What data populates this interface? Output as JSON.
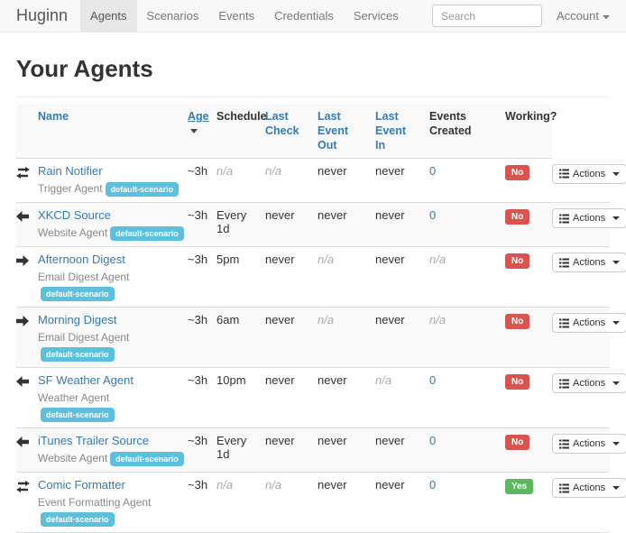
{
  "navbar": {
    "brand": "Huginn",
    "items": [
      {
        "label": "Agents",
        "active": true
      },
      {
        "label": "Scenarios",
        "active": false
      },
      {
        "label": "Events",
        "active": false
      },
      {
        "label": "Credentials",
        "active": false
      },
      {
        "label": "Services",
        "active": false
      }
    ],
    "search": {
      "placeholder": "Search"
    },
    "account_label": "Account"
  },
  "page": {
    "title": "Your Agents"
  },
  "colors": {
    "link": "#337ab7",
    "scenario_badge": "#5bc0de",
    "working_no": "#d9534f",
    "working_yes": "#5cb85c",
    "active_nav_bg": "#e7e7e7"
  },
  "table": {
    "columns": [
      {
        "key": "name",
        "label": "Name",
        "link": true,
        "sorted": false
      },
      {
        "key": "age",
        "label": "Age",
        "link": true,
        "sorted": true
      },
      {
        "key": "schedule",
        "label": "Schedule",
        "link": false,
        "sorted": false
      },
      {
        "key": "last_check",
        "label": "Last\nCheck",
        "link": true,
        "sorted": false
      },
      {
        "key": "last_event_out",
        "label": "Last Event\nOut",
        "link": true,
        "sorted": false
      },
      {
        "key": "last_event_in",
        "label": "Last Event\nIn",
        "link": true,
        "sorted": false
      },
      {
        "key": "events_created",
        "label": "Events\nCreated",
        "link": false,
        "sorted": false
      },
      {
        "key": "working",
        "label": "Working?",
        "link": false,
        "sorted": false
      }
    ],
    "actions_label": "Actions",
    "rows": [
      {
        "icon": "transfer",
        "name": "Rain Notifier",
        "type": "Trigger Agent",
        "scenario": "default-scenario",
        "age": "~3h",
        "schedule": "n/a",
        "last_check": "n/a",
        "last_event_out": "never",
        "last_event_in": "never",
        "events_created": "0",
        "working": "No"
      },
      {
        "icon": "arrow-left",
        "name": "XKCD Source",
        "type": "Website Agent",
        "scenario": "default-scenario",
        "age": "~3h",
        "schedule": "Every 1d",
        "last_check": "never",
        "last_event_out": "never",
        "last_event_in": "never",
        "events_created": "0",
        "working": "No"
      },
      {
        "icon": "arrow-right",
        "name": "Afternoon Digest",
        "type": "Email Digest Agent",
        "scenario": "default-scenario",
        "age": "~3h",
        "schedule": "5pm",
        "last_check": "never",
        "last_event_out": "n/a",
        "last_event_in": "never",
        "events_created": "n/a",
        "working": "No"
      },
      {
        "icon": "arrow-right",
        "name": "Morning Digest",
        "type": "Email Digest Agent",
        "scenario": "default-scenario",
        "age": "~3h",
        "schedule": "6am",
        "last_check": "never",
        "last_event_out": "n/a",
        "last_event_in": "never",
        "events_created": "n/a",
        "working": "No"
      },
      {
        "icon": "arrow-left",
        "name": "SF Weather Agent",
        "type": "Weather Agent",
        "scenario": "default-scenario",
        "age": "~3h",
        "schedule": "10pm",
        "last_check": "never",
        "last_event_out": "never",
        "last_event_in": "n/a",
        "events_created": "0",
        "working": "No"
      },
      {
        "icon": "arrow-left",
        "name": "iTunes Trailer Source",
        "type": "Website Agent",
        "scenario": "default-scenario",
        "age": "~3h",
        "schedule": "Every 1d",
        "last_check": "never",
        "last_event_out": "never",
        "last_event_in": "never",
        "events_created": "0",
        "working": "No"
      },
      {
        "icon": "transfer",
        "name": "Comic Formatter",
        "type": "Event Formatting Agent",
        "scenario": "default-scenario",
        "age": "~3h",
        "schedule": "n/a",
        "last_check": "n/a",
        "last_event_out": "never",
        "last_event_in": "never",
        "events_created": "0",
        "working": "Yes"
      }
    ]
  }
}
